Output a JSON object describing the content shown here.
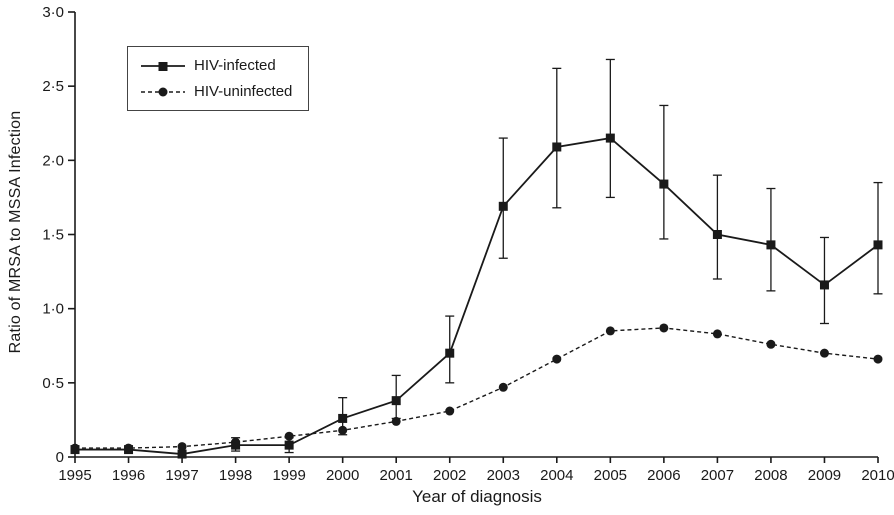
{
  "figure": {
    "background": "#ffffff",
    "axis_color": "#1a1a1a"
  },
  "chart_data": {
    "type": "line",
    "title": "",
    "xlabel": "Year of diagnosis",
    "ylabel": "Ratio of MRSA to MSSA Infection",
    "grid": false,
    "legend_position": "top-left",
    "x": [
      1995,
      1996,
      1997,
      1998,
      1999,
      2000,
      2001,
      2002,
      2003,
      2004,
      2005,
      2006,
      2007,
      2008,
      2009,
      2010
    ],
    "x_tick_labels": [
      "1995",
      "1996",
      "1997",
      "1998",
      "1999",
      "2000",
      "2001",
      "2002",
      "2003",
      "2004",
      "2005",
      "2006",
      "2007",
      "2008",
      "2009",
      "2010"
    ],
    "ylim": [
      0,
      3.0
    ],
    "y_ticks": [
      0,
      0.5,
      1.0,
      1.5,
      2.0,
      2.5,
      3.0
    ],
    "y_tick_labels": [
      "0",
      "0·5",
      "1·0",
      "1·5",
      "2·0",
      "2·5",
      "3·0"
    ],
    "series": [
      {
        "name": "HIV-infected",
        "marker": "square",
        "line_style": "solid",
        "color": "#1a1a1a",
        "values": [
          0.05,
          0.05,
          0.02,
          0.08,
          0.08,
          0.26,
          0.38,
          0.7,
          1.69,
          2.09,
          2.15,
          1.84,
          1.5,
          1.43,
          1.16,
          1.43
        ],
        "error_low": [
          0.05,
          0.05,
          0.02,
          0.04,
          0.03,
          0.15,
          0.26,
          0.5,
          1.34,
          1.68,
          1.75,
          1.47,
          1.2,
          1.12,
          0.9,
          1.1
        ],
        "error_high": [
          0.05,
          0.05,
          0.02,
          0.13,
          0.13,
          0.4,
          0.55,
          0.95,
          2.15,
          2.62,
          2.68,
          2.37,
          1.9,
          1.81,
          1.48,
          1.85
        ]
      },
      {
        "name": "HIV-uninfected",
        "marker": "circle",
        "line_style": "dashed",
        "color": "#1a1a1a",
        "values": [
          0.06,
          0.06,
          0.07,
          0.1,
          0.14,
          0.18,
          0.24,
          0.31,
          0.47,
          0.66,
          0.85,
          0.87,
          0.83,
          0.76,
          0.7,
          0.66
        ]
      }
    ]
  }
}
